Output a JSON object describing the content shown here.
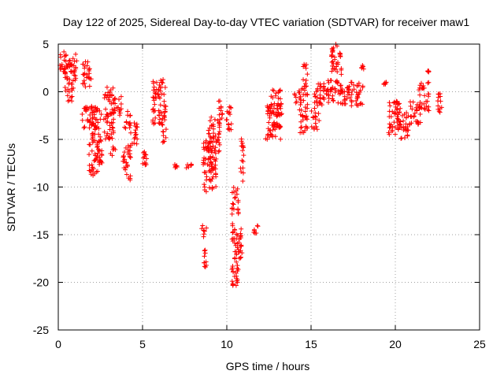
{
  "chart_data": {
    "type": "scatter",
    "title": "Day 122 of 2025, Sidereal Day-to-day VTEC variation (SDTVAR) for receiver maw1",
    "xlabel": "GPS time / hours",
    "ylabel": "SDTVAR / TECUs",
    "xlim": [
      0,
      25
    ],
    "ylim": [
      -25,
      5
    ],
    "xticks": [
      0,
      5,
      10,
      15,
      20,
      25
    ],
    "yticks": [
      5,
      0,
      -5,
      -10,
      -15,
      -20,
      -25
    ],
    "grid": true,
    "marker": "+",
    "color": "#ff0000",
    "series": [
      {
        "name": "SDTVAR",
        "clusters": [
          {
            "x": [
              0.05,
              0.5
            ],
            "y": [
              1.5,
              4.2
            ]
          },
          {
            "x": [
              0.4,
              1.0
            ],
            "y": [
              -1.0,
              3.5
            ]
          },
          {
            "x": [
              0.9,
              1.1
            ],
            "y": [
              1.0,
              4.2
            ]
          },
          {
            "x": [
              1.4,
              2.0
            ],
            "y": [
              0.5,
              3.2
            ]
          },
          {
            "x": [
              1.4,
              2.2
            ],
            "y": [
              -4.0,
              -1.5
            ]
          },
          {
            "x": [
              1.8,
              2.6
            ],
            "y": [
              -8.8,
              -5.5
            ]
          },
          {
            "x": [
              2.0,
              2.6
            ],
            "y": [
              -5.5,
              -1.5
            ]
          },
          {
            "x": [
              2.7,
              3.3
            ],
            "y": [
              -5.0,
              0.6
            ]
          },
          {
            "x": [
              3.2,
              3.8
            ],
            "y": [
              -2.5,
              -0.5
            ]
          },
          {
            "x": [
              3.1,
              3.4
            ],
            "y": [
              -6.8,
              -5.8
            ]
          },
          {
            "x": [
              3.8,
              4.3
            ],
            "y": [
              -9.3,
              -5.5
            ]
          },
          {
            "x": [
              3.9,
              4.3
            ],
            "y": [
              -4.0,
              -2.0
            ]
          },
          {
            "x": [
              4.3,
              4.7
            ],
            "y": [
              -5.5,
              -3.0
            ]
          },
          {
            "x": [
              5.0,
              5.4
            ],
            "y": [
              -8.0,
              -6.0
            ]
          },
          {
            "x": [
              5.6,
              6.4
            ],
            "y": [
              -3.5,
              1.5
            ]
          },
          {
            "x": [
              6.2,
              6.5
            ],
            "y": [
              -5.5,
              -3.8
            ]
          },
          {
            "x": [
              6.9,
              7.1
            ],
            "y": [
              -8.0,
              -7.6
            ]
          },
          {
            "x": [
              7.6,
              7.9
            ],
            "y": [
              -8.0,
              -7.6
            ]
          },
          {
            "x": [
              8.5,
              8.8
            ],
            "y": [
              -18.5,
              -16.5
            ]
          },
          {
            "x": [
              8.5,
              8.8
            ],
            "y": [
              -15.5,
              -14.0
            ]
          },
          {
            "x": [
              8.6,
              9.4
            ],
            "y": [
              -10.5,
              -5.0
            ]
          },
          {
            "x": [
              8.9,
              9.6
            ],
            "y": [
              -6.5,
              -2.5
            ]
          },
          {
            "x": [
              9.5,
              9.8
            ],
            "y": [
              -3.0,
              -0.8
            ]
          },
          {
            "x": [
              9.9,
              10.3
            ],
            "y": [
              -4.0,
              -1.5
            ]
          },
          {
            "x": [
              10.3,
              10.7
            ],
            "y": [
              -20.5,
              -10.0
            ]
          },
          {
            "x": [
              10.6,
              10.9
            ],
            "y": [
              -17.5,
              -14.0
            ]
          },
          {
            "x": [
              10.8,
              11.0
            ],
            "y": [
              -9.5,
              -4.5
            ]
          },
          {
            "x": [
              11.6,
              11.9
            ],
            "y": [
              -15.2,
              -13.8
            ]
          },
          {
            "x": [
              12.3,
              13.2
            ],
            "y": [
              -5.0,
              -1.0
            ]
          },
          {
            "x": [
              12.6,
              13.3
            ],
            "y": [
              -2.5,
              0.2
            ]
          },
          {
            "x": [
              14.0,
              14.3
            ],
            "y": [
              -1.2,
              0.2
            ]
          },
          {
            "x": [
              14.3,
              14.8
            ],
            "y": [
              -4.3,
              0.5
            ]
          },
          {
            "x": [
              14.5,
              14.8
            ],
            "y": [
              0.5,
              3.0
            ]
          },
          {
            "x": [
              15.0,
              15.5
            ],
            "y": [
              -4.0,
              -2.0
            ]
          },
          {
            "x": [
              15.2,
              15.8
            ],
            "y": [
              -2.0,
              1.0
            ]
          },
          {
            "x": [
              15.7,
              16.1
            ],
            "y": [
              -1.2,
              0.5
            ]
          },
          {
            "x": [
              16.0,
              16.6
            ],
            "y": [
              -1.0,
              1.5
            ]
          },
          {
            "x": [
              16.2,
              16.8
            ],
            "y": [
              1.5,
              5.0
            ]
          },
          {
            "x": [
              16.6,
              18.1
            ],
            "y": [
              -1.5,
              1.0
            ]
          },
          {
            "x": [
              18.0,
              18.2
            ],
            "y": [
              2.3,
              2.8
            ]
          },
          {
            "x": [
              19.3,
              19.5
            ],
            "y": [
              0.5,
              1.0
            ]
          },
          {
            "x": [
              19.6,
              20.3
            ],
            "y": [
              -4.5,
              -1.0
            ]
          },
          {
            "x": [
              20.1,
              20.8
            ],
            "y": [
              -5.0,
              -2.0
            ]
          },
          {
            "x": [
              20.8,
              21.5
            ],
            "y": [
              -3.5,
              -1.0
            ]
          },
          {
            "x": [
              21.4,
              22.0
            ],
            "y": [
              -2.0,
              1.0
            ]
          },
          {
            "x": [
              21.9,
              22.0
            ],
            "y": [
              2.0,
              2.2
            ]
          },
          {
            "x": [
              22.5,
              22.8
            ],
            "y": [
              -2.8,
              -0.2
            ]
          }
        ]
      }
    ]
  }
}
